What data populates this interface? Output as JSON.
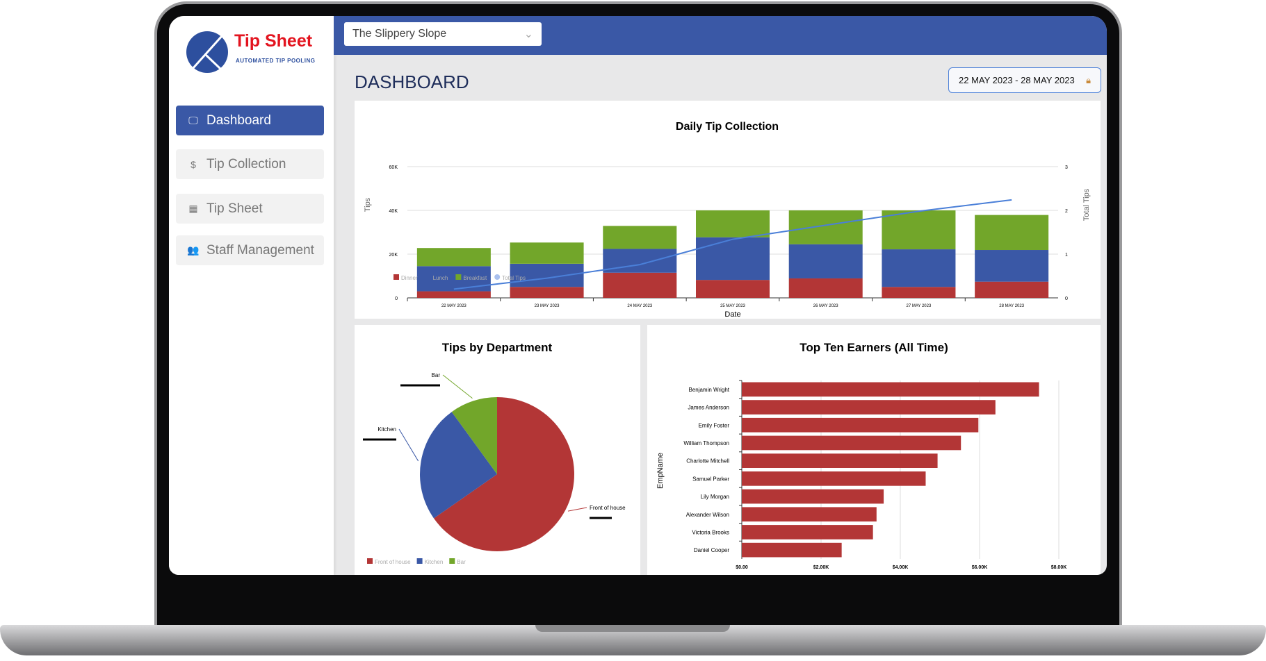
{
  "app": {
    "logo_title": "Tip Sheet",
    "logo_subtitle": "AUTOMATED TIP POOLING"
  },
  "sidebar": {
    "items": [
      {
        "label": "Dashboard",
        "icon": "monitor-icon",
        "active": true
      },
      {
        "label": "Tip Collection",
        "icon": "dollar-circle-icon"
      },
      {
        "label": "Tip Sheet",
        "icon": "calculator-icon"
      },
      {
        "label": "Staff Management",
        "icon": "users-icon"
      }
    ]
  },
  "topbar": {
    "venue_select": "The Slippery Slope"
  },
  "header": {
    "title": "DASHBOARD",
    "date_range": "22 MAY 2023 - 28 MAY 2023",
    "date_icon": "lock-icon"
  },
  "colors": {
    "brand": "#3a58a6",
    "dinner": "#b33636",
    "lunch": "#3a58a6",
    "breakfast": "#72a62a",
    "total": "#4a7fd8",
    "logo_red": "#e3141f"
  },
  "chart_data": [
    {
      "type": "bar",
      "stacked": true,
      "title": "Daily Tip Collection",
      "xlabel": "Date",
      "ylabel": "Tips",
      "y2label": "Total Tips",
      "categories": [
        "22 MAY 2023",
        "23 MAY 2023",
        "24 MAY 2023",
        "25 MAY 2023",
        "26 MAY 2023",
        "27 MAY 2023",
        "28 MAY 2023"
      ],
      "ylim": [
        0,
        60000
      ],
      "yticks": [
        "0",
        "20K",
        "40K",
        "60K"
      ],
      "y2lim": [
        0,
        3
      ],
      "y2ticks": [
        "0",
        "1",
        "2",
        "3"
      ],
      "series": [
        {
          "name": "Dinner",
          "values": [
            3000,
            5000,
            11500,
            8200,
            8900,
            5000,
            7400
          ]
        },
        {
          "name": "Lunch",
          "values": [
            11500,
            10600,
            10900,
            19500,
            15600,
            17200,
            14500
          ]
        },
        {
          "name": "Breakfast",
          "values": [
            8300,
            9700,
            10500,
            12300,
            15500,
            17800,
            16000
          ]
        },
        {
          "name": "Total Tips",
          "type": "line",
          "axis": "right",
          "values": [
            0.2,
            0.45,
            0.76,
            1.34,
            1.66,
            1.98,
            2.24
          ]
        }
      ],
      "legend": "bottom-left",
      "grid": true
    },
    {
      "type": "pie",
      "title": "Tips by Department",
      "categories": [
        "Front of house",
        "Kitchen",
        "Bar"
      ],
      "values": [
        65.3,
        24.7,
        10
      ],
      "legend": "bottom-left"
    },
    {
      "type": "bar",
      "orientation": "horizontal",
      "title": "Top Ten Earners (All Time)",
      "ylabel": "EmpName",
      "categories": [
        "Benjamin Wright",
        "James Anderson",
        "Emily Foster",
        "William Thompson",
        "Charlotte Mitchell",
        "Samuel Parker",
        "Lily Morgan",
        "Alexander Wilson",
        "Victoria Brooks",
        "Daniel Cooper"
      ],
      "values": [
        7500,
        6400,
        5970,
        5530,
        4940,
        4640,
        3580,
        3400,
        3310,
        2520
      ],
      "xlim": [
        0,
        8000
      ],
      "xticks": [
        "$0.00",
        "$2.00K",
        "$4.00K",
        "$6.00K",
        "$8.00K"
      ],
      "grid": true
    }
  ]
}
